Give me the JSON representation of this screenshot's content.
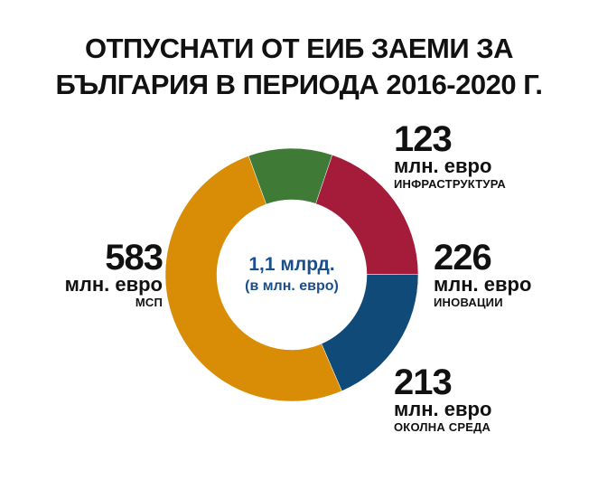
{
  "chart_data": {
    "type": "pie",
    "variant": "donut",
    "title_lines": [
      "ОТПУСНАТИ ОТ ЕИБ ЗАЕМИ ЗА",
      "БЪЛГАРИЯ В ПЕРИОДА 2016-2020 Г."
    ],
    "center_label": "1,1 млрд.",
    "center_sublabel": "(в млн. евро)",
    "unit_label": "млн. евро",
    "slices": [
      {
        "category": "ИНФРАСТРУКТУРА",
        "value": 123,
        "value_label": "123",
        "color": "#3f7a37"
      },
      {
        "category": "ИНОВАЦИИ",
        "value": 226,
        "value_label": "226",
        "color": "#a51c3a"
      },
      {
        "category": "ОКОЛНА СРЕДА",
        "value": 213,
        "value_label": "213",
        "color": "#0f4a78"
      },
      {
        "category": "МСП",
        "value": 583,
        "value_label": "583",
        "color": "#d98c05"
      }
    ],
    "legend": "none"
  }
}
